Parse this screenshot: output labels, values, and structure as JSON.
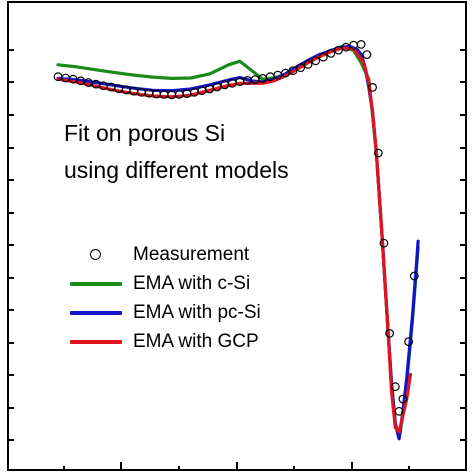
{
  "annotation": {
    "line1": "Fit on porous Si",
    "line2": "using different models"
  },
  "chart_data": {
    "type": "line",
    "title": "",
    "xlabel": "",
    "ylabel": "",
    "xlim": [
      0,
      100
    ],
    "ylim": [
      0,
      100
    ],
    "grid": false,
    "legend_position": "left",
    "colors": {
      "measurement": "#000000",
      "c_si": "#1a8a1a",
      "pc_si": "#1414c8",
      "gcp": "#e0141e"
    },
    "legend": [
      {
        "name": "Measurement",
        "style": "circle"
      },
      {
        "name": "EMA with c-Si",
        "style": "line"
      },
      {
        "name": "EMA with pc-Si",
        "style": "line"
      },
      {
        "name": "EMA with GCP",
        "style": "line"
      }
    ],
    "series": [
      {
        "name": "EMA with c-Si",
        "x": [
          0,
          5,
          10,
          15,
          20,
          25,
          30,
          35,
          40,
          45,
          48,
          51,
          54,
          57,
          60,
          63,
          66,
          69,
          72,
          75,
          78,
          80,
          82,
          84,
          85.5,
          87,
          88,
          89,
          90,
          91,
          92,
          93,
          93.5,
          94,
          94.5,
          95
        ],
        "y": [
          91.5,
          91.0,
          90.3,
          89.6,
          89.0,
          88.5,
          88.2,
          88.3,
          89.3,
          91.5,
          92.4,
          90.2,
          88.0,
          88.3,
          89.2,
          90.5,
          92.0,
          93.6,
          95.0,
          96.0,
          95.0,
          92.0,
          88.0,
          70.0,
          50.0,
          28.0,
          14.0,
          4.0,
          0.5,
          6.0,
          14.0,
          24.0,
          29.0,
          35.0,
          41.0,
          47.0
        ]
      },
      {
        "name": "EMA with pc-Si",
        "x": [
          0,
          5,
          10,
          15,
          20,
          25,
          30,
          35,
          40,
          45,
          48,
          51,
          54,
          57,
          60,
          63,
          66,
          69,
          72,
          75,
          77,
          79,
          80,
          81,
          82,
          83,
          84,
          85.5,
          87,
          88,
          89,
          90,
          91,
          92,
          93,
          93.5,
          94,
          94.5,
          95
        ],
        "y": [
          88.2,
          87.8,
          87.2,
          86.5,
          85.8,
          85.3,
          85.2,
          85.6,
          86.6,
          87.8,
          88.4,
          87.6,
          87.3,
          88.0,
          89.3,
          91.0,
          92.6,
          94.0,
          95.0,
          95.8,
          96.0,
          95.2,
          94.0,
          91.0,
          86.0,
          80.0,
          70.0,
          50.0,
          28.0,
          14.0,
          4.0,
          0.3,
          7.0,
          15.0,
          25.0,
          30.0,
          36.0,
          42.0,
          48.5
        ]
      },
      {
        "name": "EMA with GCP",
        "x": [
          0,
          5,
          10,
          15,
          20,
          25,
          30,
          35,
          40,
          45,
          48,
          51,
          54,
          57,
          60,
          63,
          66,
          69,
          72,
          75,
          78,
          80,
          81,
          82,
          83,
          84,
          85.5,
          87,
          88,
          89,
          90,
          91,
          92,
          93
        ],
        "y": [
          88.0,
          87.3,
          86.3,
          85.3,
          84.5,
          83.9,
          83.7,
          84.1,
          85.3,
          86.5,
          87.0,
          87.0,
          87.0,
          87.6,
          88.8,
          90.4,
          92.0,
          93.5,
          94.7,
          95.6,
          95.3,
          93.0,
          91.0,
          87.0,
          80.0,
          70.0,
          50.0,
          28.0,
          12.0,
          3.0,
          2.0,
          6.0,
          10.0,
          16.0
        ]
      },
      {
        "name": "Measurement",
        "x": [
          0,
          2,
          4,
          6,
          8,
          10,
          12,
          14,
          16,
          18,
          20,
          22,
          24,
          26,
          28,
          30,
          32,
          34,
          36,
          38,
          40,
          42,
          44,
          46,
          48,
          50,
          52,
          54,
          56,
          58,
          60,
          62,
          64,
          66,
          68,
          70,
          72,
          74,
          76,
          78,
          80,
          81.5,
          83,
          84.5,
          86,
          87.5,
          89,
          90,
          91,
          92.5,
          94
        ],
        "y": [
          88.6,
          88.3,
          88.0,
          87.6,
          87.2,
          86.8,
          86.4,
          86.1,
          85.7,
          85.4,
          85.1,
          84.8,
          84.6,
          84.4,
          84.3,
          84.2,
          84.3,
          84.5,
          84.8,
          85.2,
          85.6,
          86.1,
          86.6,
          87.0,
          87.4,
          87.7,
          87.9,
          88.2,
          88.6,
          89.0,
          89.5,
          90.1,
          90.8,
          91.6,
          92.5,
          93.4,
          94.3,
          95.1,
          95.8,
          96.3,
          96.5,
          94.0,
          86.0,
          70.0,
          48.0,
          26.0,
          13.0,
          7.0,
          10.0,
          24.0,
          40.0
        ]
      }
    ]
  }
}
